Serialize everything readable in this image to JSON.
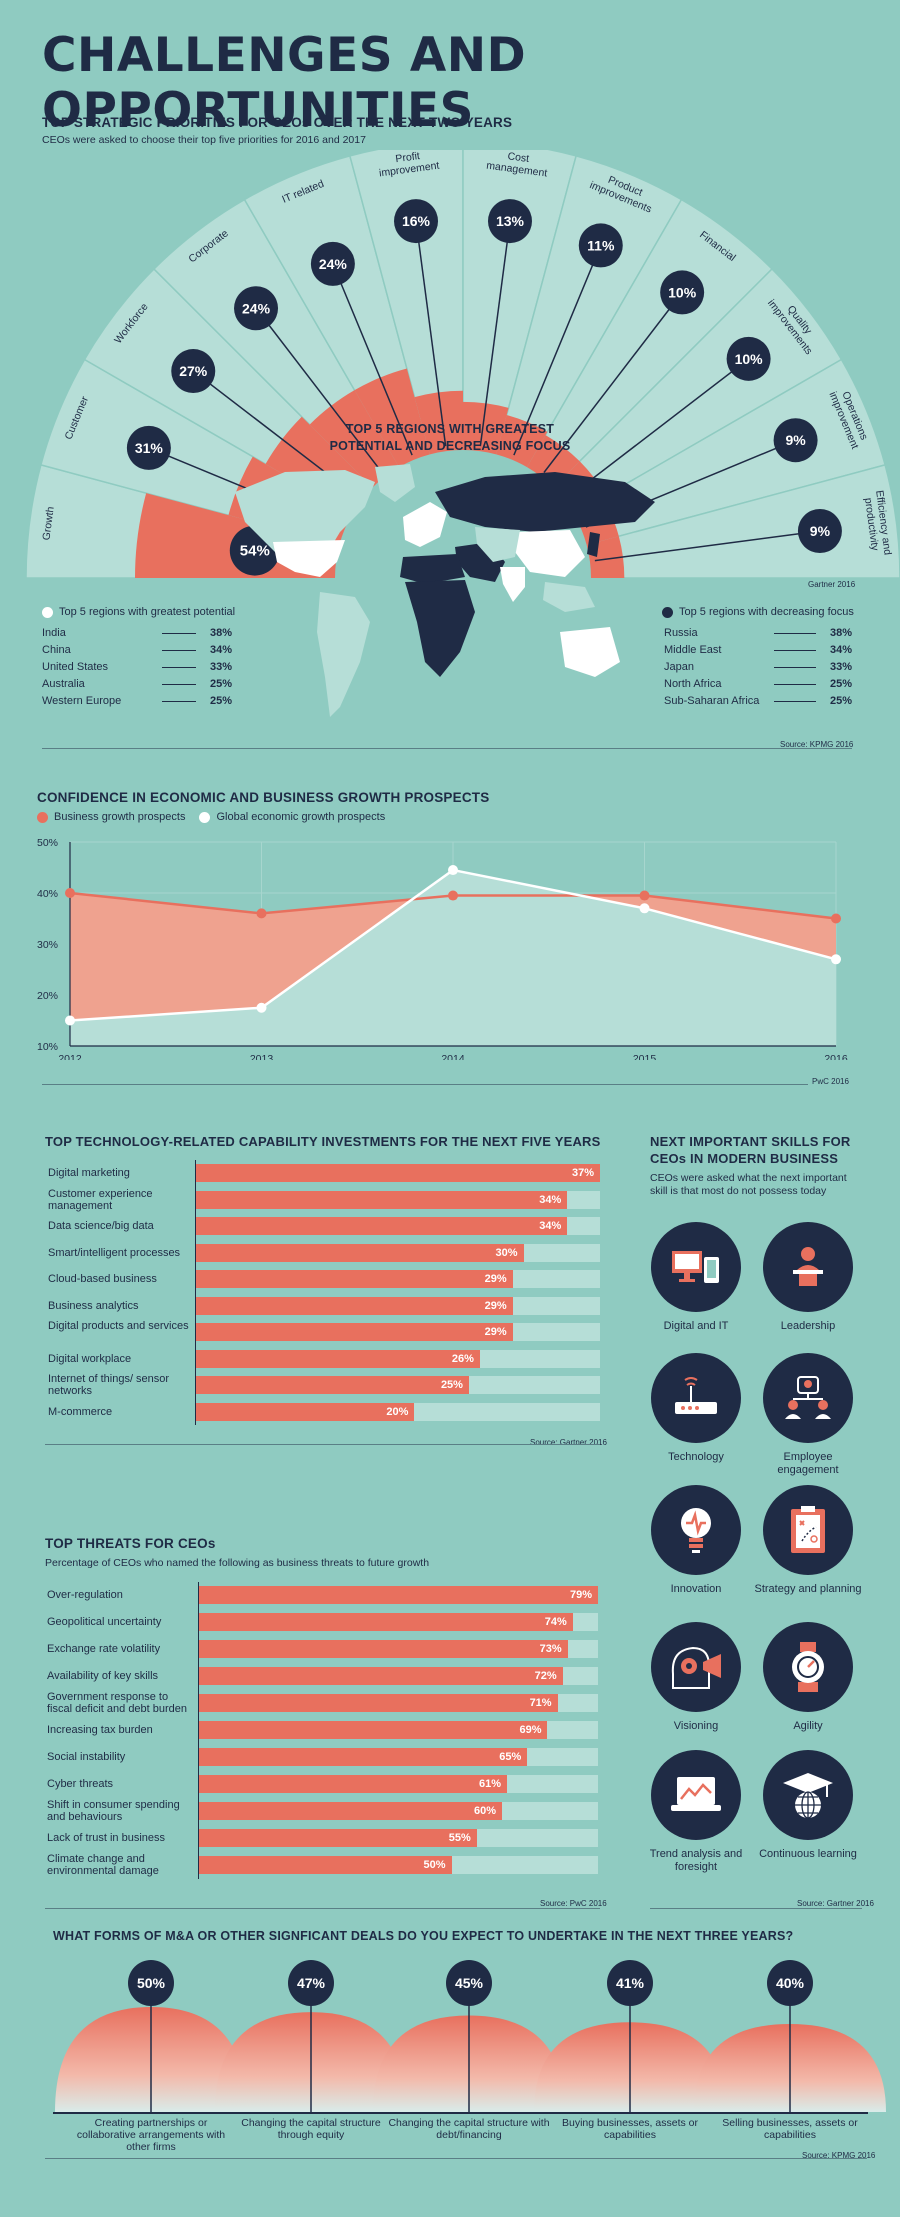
{
  "title": "CHALLENGES AND OPPORTUNITIES",
  "priorities": {
    "heading": "TOP STRATEGIC PRIORITIES FOR CEOs OVER THE NEXT TWO YEARS",
    "subheading": "CEOs were asked to choose their top five priorities for 2016 and 2017",
    "source": "Gartner 2016",
    "items": [
      {
        "label": "Growth",
        "value": 54,
        "display": "54%"
      },
      {
        "label": "Customer",
        "value": 31,
        "display": "31%"
      },
      {
        "label": "Workforce",
        "value": 27,
        "display": "27%"
      },
      {
        "label": "Corporate",
        "value": 24,
        "display": "24%"
      },
      {
        "label": "IT related",
        "value": 24,
        "display": "24%"
      },
      {
        "label": "Profit improvement",
        "value": 16,
        "display": "16%"
      },
      {
        "label": "Cost management",
        "value": 13,
        "display": "13%"
      },
      {
        "label": "Product improvements",
        "value": 11,
        "display": "11%"
      },
      {
        "label": "Financial",
        "value": 10,
        "display": "10%"
      },
      {
        "label": "Quality improvements",
        "value": 10,
        "display": "10%"
      },
      {
        "label": "Operations improvement",
        "value": 9,
        "display": "9%"
      },
      {
        "label": "Efficiency and productivity",
        "value": 9,
        "display": "9%"
      }
    ]
  },
  "regions": {
    "heading_line1": "TOP 5 REGIONS WITH GREATEST",
    "heading_line2": "POTENTIAL AND DECREASING FOCUS",
    "source": "Source: KPMG 2016",
    "potential_legend": "Top 5 regions with greatest potential",
    "decreasing_legend": "Top 5 regions with decreasing focus",
    "potential": [
      {
        "name": "India",
        "value": "38%"
      },
      {
        "name": "China",
        "value": "34%"
      },
      {
        "name": "United States",
        "value": "33%"
      },
      {
        "name": "Australia",
        "value": "25%"
      },
      {
        "name": "Western Europe",
        "value": "25%"
      }
    ],
    "decreasing": [
      {
        "name": "Russia",
        "value": "38%"
      },
      {
        "name": "Middle East",
        "value": "34%"
      },
      {
        "name": "Japan",
        "value": "33%"
      },
      {
        "name": "North Africa",
        "value": "25%"
      },
      {
        "name": "Sub-Saharan Africa",
        "value": "25%"
      }
    ]
  },
  "confidence": {
    "heading": "CONFIDENCE IN ECONOMIC AND BUSINESS GROWTH PROSPECTS",
    "legend_business": "Business growth prospects",
    "legend_global": "Global economic growth prospects",
    "source": "PwC 2016",
    "colors": {
      "business": "#e8705e",
      "business_fill": "#efa28f",
      "global": "#ffffff",
      "global_fill": "#b6ded7"
    }
  },
  "tech": {
    "heading": "TOP TECHNOLOGY-RELATED CAPABILITY INVESTMENTS FOR THE NEXT FIVE YEARS",
    "source": "Source: Gartner 2016",
    "items": [
      {
        "label": "Digital marketing",
        "value": 37,
        "display": "37%"
      },
      {
        "label": "Customer experience management",
        "value": 34,
        "display": "34%"
      },
      {
        "label": "Data science/big data",
        "value": 34,
        "display": "34%"
      },
      {
        "label": "Smart/intelligent processes",
        "value": 30,
        "display": "30%"
      },
      {
        "label": "Cloud-based business",
        "value": 29,
        "display": "29%"
      },
      {
        "label": "Business analytics",
        "value": 29,
        "display": "29%"
      },
      {
        "label": "Digital products and services",
        "value": 29,
        "display": "29%"
      },
      {
        "label": "Digital workplace",
        "value": 26,
        "display": "26%"
      },
      {
        "label": "Internet of things/ sensor networks",
        "value": 25,
        "display": "25%"
      },
      {
        "label": "M-commerce",
        "value": 20,
        "display": "20%"
      }
    ]
  },
  "threats": {
    "heading": "TOP THREATS FOR CEOs",
    "subheading": "Percentage of CEOs who named the following as business threats to future growth",
    "source": "Source: PwC 2016",
    "items": [
      {
        "label": "Over-regulation",
        "value": 79,
        "display": "79%"
      },
      {
        "label": "Geopolitical uncertainty",
        "value": 74,
        "display": "74%"
      },
      {
        "label": "Exchange rate volatility",
        "value": 73,
        "display": "73%"
      },
      {
        "label": "Availability of key skills",
        "value": 72,
        "display": "72%"
      },
      {
        "label": "Government response to fiscal deficit and debt burden",
        "value": 71,
        "display": "71%"
      },
      {
        "label": "Increasing tax burden",
        "value": 69,
        "display": "69%"
      },
      {
        "label": "Social instability",
        "value": 65,
        "display": "65%"
      },
      {
        "label": "Cyber threats",
        "value": 61,
        "display": "61%"
      },
      {
        "label": "Shift in consumer spending and behaviours",
        "value": 60,
        "display": "60%"
      },
      {
        "label": "Lack of trust in business",
        "value": 55,
        "display": "55%"
      },
      {
        "label": "Climate change and environmental damage",
        "value": 50,
        "display": "50%"
      }
    ]
  },
  "skills": {
    "heading_line1": "NEXT IMPORTANT SKILLS FOR",
    "heading_line2": "CEOs IN MODERN BUSINESS",
    "subheading": "CEOs were asked what the next important skill is that most do not possess today",
    "source": "Source: Gartner 2016",
    "items": [
      {
        "label": "Digital and IT",
        "icon": "devices-icon"
      },
      {
        "label": "Leadership",
        "icon": "speaker-icon"
      },
      {
        "label": "Technology",
        "icon": "router-icon"
      },
      {
        "label": "Employee engagement",
        "icon": "team-icon"
      },
      {
        "label": "Innovation",
        "icon": "lightbulb-icon"
      },
      {
        "label": "Strategy and planning",
        "icon": "clipboard-icon"
      },
      {
        "label": "Visioning",
        "icon": "head-gear-icon"
      },
      {
        "label": "Agility",
        "icon": "stopwatch-icon"
      },
      {
        "label": "Trend analysis and foresight",
        "icon": "laptop-chart-icon"
      },
      {
        "label": "Continuous learning",
        "icon": "graduation-cap-icon"
      }
    ]
  },
  "ma": {
    "heading": "WHAT FORMS OF M&A OR OTHER SIGNFICANT DEALS DO YOU EXPECT TO UNDERTAKE IN THE NEXT THREE YEARS?",
    "source": "Source: KPMG 2016",
    "items": [
      {
        "label": "Creating partnerships or collaborative arrangements with other firms",
        "value": 50,
        "display": "50%"
      },
      {
        "label": "Changing the capital structure through equity",
        "value": 47,
        "display": "47%"
      },
      {
        "label": "Changing the capital structure with debt/financing",
        "value": 45,
        "display": "45%"
      },
      {
        "label": "Buying businesses, assets or capabilities",
        "value": 41,
        "display": "41%"
      },
      {
        "label": "Selling businesses, assets or capabilities",
        "value": 40,
        "display": "40%"
      }
    ]
  },
  "chart_data": [
    {
      "type": "bar",
      "title": "TOP STRATEGIC PRIORITIES FOR CEOs OVER THE NEXT TWO YEARS",
      "categories": [
        "Growth",
        "Customer",
        "Workforce",
        "Corporate",
        "IT related",
        "Profit improvement",
        "Cost management",
        "Product improvements",
        "Financial",
        "Quality improvements",
        "Operations improvement",
        "Efficiency and productivity"
      ],
      "values": [
        54,
        31,
        27,
        24,
        24,
        16,
        13,
        11,
        10,
        10,
        9,
        9
      ]
    },
    {
      "type": "area",
      "title": "CONFIDENCE IN ECONOMIC AND BUSINESS GROWTH PROSPECTS",
      "x": [
        2012,
        2013,
        2014,
        2015,
        2016
      ],
      "ylim": [
        10,
        50
      ],
      "yticks": [
        "10%",
        "20%",
        "30%",
        "40%",
        "50%"
      ],
      "series": [
        {
          "name": "Business growth prospects",
          "values": [
            40,
            36,
            39.5,
            39.5,
            35
          ]
        },
        {
          "name": "Global economic growth prospects",
          "values": [
            15,
            17.5,
            44.5,
            37,
            27
          ]
        }
      ],
      "grid": true,
      "legend": "top-left"
    },
    {
      "type": "bar",
      "title": "TOP TECHNOLOGY-RELATED CAPABILITY INVESTMENTS FOR THE NEXT FIVE YEARS",
      "categories": [
        "Digital marketing",
        "Customer experience management",
        "Data science/big data",
        "Smart/intelligent processes",
        "Cloud-based business",
        "Business analytics",
        "Digital products and services",
        "Digital workplace",
        "Internet of things/ sensor networks",
        "M-commerce"
      ],
      "values": [
        37,
        34,
        34,
        30,
        29,
        29,
        29,
        26,
        25,
        20
      ]
    },
    {
      "type": "bar",
      "title": "TOP THREATS FOR CEOs",
      "categories": [
        "Over-regulation",
        "Geopolitical uncertainty",
        "Exchange rate volatility",
        "Availability of key skills",
        "Government response to fiscal deficit and debt burden",
        "Increasing tax burden",
        "Social instability",
        "Cyber threats",
        "Shift in consumer spending and behaviours",
        "Lack of trust in business",
        "Climate change and environmental damage"
      ],
      "values": [
        79,
        74,
        73,
        72,
        71,
        69,
        65,
        61,
        60,
        55,
        50
      ]
    },
    {
      "type": "bar",
      "title": "WHAT FORMS OF M&A OR OTHER SIGNFICANT DEALS DO YOU EXPECT TO UNDERTAKE IN THE NEXT THREE YEARS?",
      "categories": [
        "Creating partnerships or collaborative arrangements with other firms",
        "Changing the capital structure through equity",
        "Changing the capital structure with debt/financing",
        "Buying businesses, assets or capabilities",
        "Selling businesses, assets or capabilities"
      ],
      "values": [
        50,
        47,
        45,
        41,
        40
      ]
    }
  ]
}
